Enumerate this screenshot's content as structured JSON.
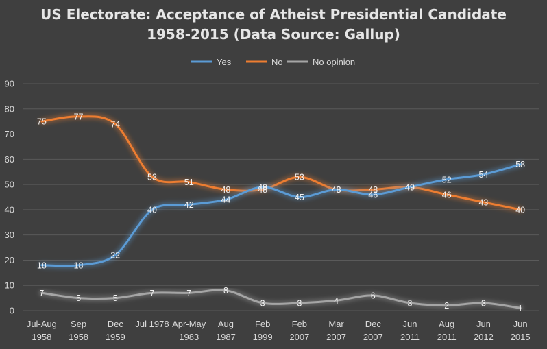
{
  "chart_data": {
    "type": "line",
    "title": "US Electorate: Acceptance of Atheist Presidential Candidate",
    "subtitle": "1958-2015 (Data Source: Gallup)",
    "categories": [
      [
        "Jul-Aug",
        "1958"
      ],
      [
        "Sep",
        "1958"
      ],
      [
        "Dec",
        "1959"
      ],
      [
        "Jul 1978",
        ""
      ],
      [
        "Apr-May",
        "1983"
      ],
      [
        "Aug",
        "1987"
      ],
      [
        "Feb",
        "1999"
      ],
      [
        "Feb",
        "2007"
      ],
      [
        "Mar",
        "2007"
      ],
      [
        "Dec",
        "2007"
      ],
      [
        "Jun",
        "2011"
      ],
      [
        "Aug",
        "2011"
      ],
      [
        "Jun",
        "2012"
      ],
      [
        "Jun",
        "2015"
      ]
    ],
    "series": [
      {
        "name": "Yes",
        "color": "#5b9bd5",
        "values": [
          18,
          18,
          22,
          40,
          42,
          44,
          49,
          45,
          48,
          46,
          49,
          52,
          54,
          58
        ]
      },
      {
        "name": "No",
        "color": "#ed7d31",
        "values": [
          75,
          77,
          74,
          53,
          51,
          48,
          48,
          53,
          48,
          48,
          49,
          46,
          43,
          40
        ]
      },
      {
        "name": "No opinion",
        "color": "#a5a5a5",
        "values": [
          7,
          5,
          5,
          7,
          7,
          8,
          3,
          3,
          4,
          6,
          3,
          2,
          3,
          1
        ]
      }
    ],
    "y_ticks": [
      0,
      10,
      20,
      30,
      40,
      50,
      60,
      70,
      80,
      90
    ],
    "ylim": [
      0,
      90
    ],
    "legend": "top",
    "grid": true
  }
}
